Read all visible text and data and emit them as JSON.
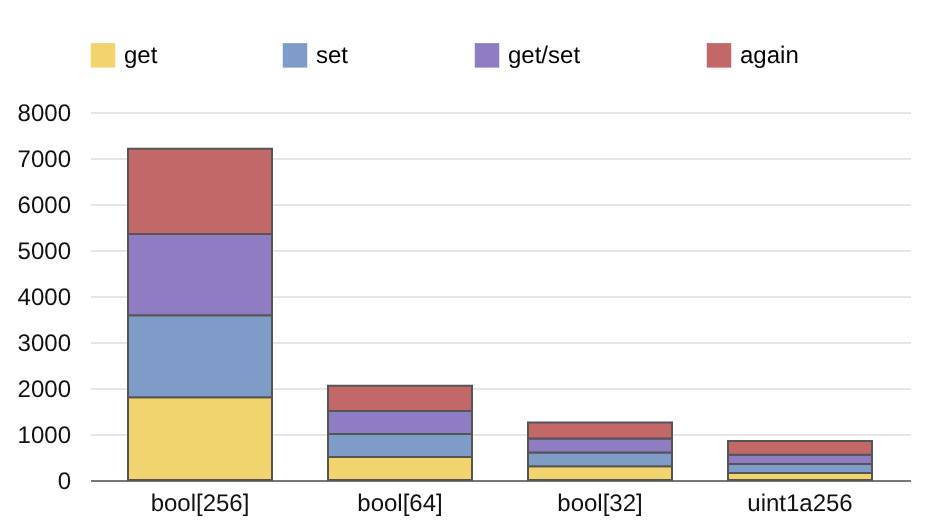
{
  "chart_data": {
    "type": "bar",
    "stacked": true,
    "categories": [
      "bool[256]",
      "bool[64]",
      "bool[32]",
      "uint1a256"
    ],
    "series": [
      {
        "name": "get",
        "color": "#f2d46e",
        "values": [
          1800,
          500,
          300,
          150
        ]
      },
      {
        "name": "set",
        "color": "#7f9cc8",
        "values": [
          1780,
          500,
          300,
          200
        ]
      },
      {
        "name": "get/set",
        "color": "#8f7cc2",
        "values": [
          1770,
          500,
          300,
          200
        ]
      },
      {
        "name": "again",
        "color": "#c26868",
        "values": [
          1850,
          550,
          350,
          300
        ]
      }
    ],
    "ylim": [
      0,
      8000
    ],
    "yticks": [
      0,
      1000,
      2000,
      3000,
      4000,
      5000,
      6000,
      7000,
      8000
    ],
    "grid": "y",
    "legend": "top"
  }
}
